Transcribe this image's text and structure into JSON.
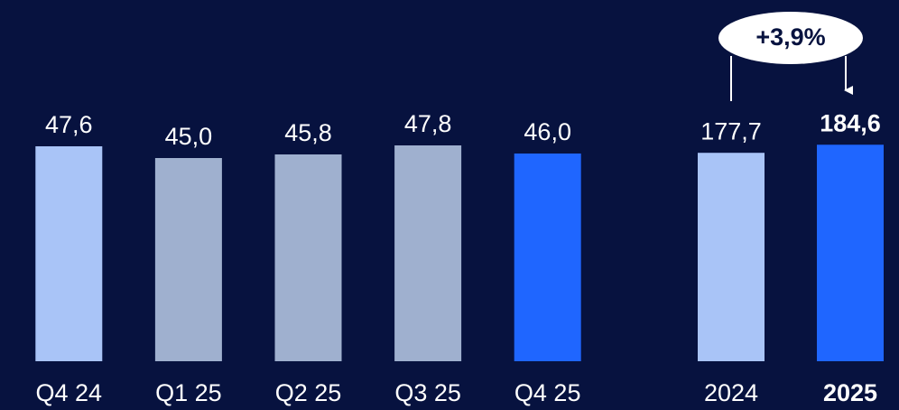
{
  "chart_data": [
    {
      "type": "bar",
      "categories": [
        "Q4 24",
        "Q1 25",
        "Q2 25",
        "Q3 25",
        "Q4 25"
      ],
      "values": [
        47.6,
        45.0,
        45.8,
        47.8,
        46.0
      ],
      "value_labels": [
        "47,6",
        "45,0",
        "45,8",
        "47,8",
        "46,0"
      ],
      "colors": [
        "#a9c4f7",
        "#9fb0cf",
        "#9fb0cf",
        "#9fb0cf",
        "#1f66ff"
      ],
      "ylim": [
        0,
        80
      ]
    },
    {
      "type": "bar",
      "categories": [
        "2024",
        "2025"
      ],
      "values": [
        177.7,
        184.6
      ],
      "value_labels": [
        "177,7",
        "184,6"
      ],
      "colors": [
        "#a9c4f7",
        "#1f66ff"
      ],
      "bold": [
        false,
        true
      ],
      "annotation": "+3,9%",
      "ylim": [
        0,
        308
      ]
    }
  ]
}
